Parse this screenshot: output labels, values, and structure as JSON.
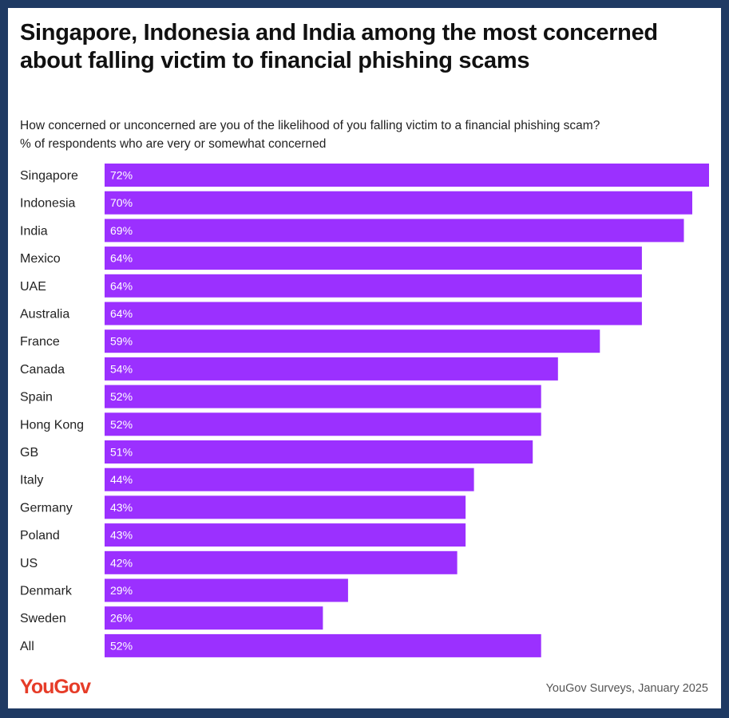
{
  "header": {
    "title": "Singapore, Indonesia and India among the most concerned about falling victim to financial phishing scams",
    "subtitle_line1": "How concerned or unconcerned are you of the likelihood of you falling victim to a financial phishing scam?",
    "subtitle_line2": "% of respondents who are very or somewhat concerned"
  },
  "footer": {
    "logo_text": "YouGov",
    "logo_color": "#e63c28",
    "source": "YouGov Surveys, January 2025"
  },
  "colors": {
    "bar": "#9b30ff",
    "border": "#1f3a63"
  },
  "chart_data": {
    "type": "bar",
    "orientation": "horizontal",
    "categories": [
      "Singapore",
      "Indonesia",
      "India",
      "Mexico",
      "UAE",
      "Australia",
      "France",
      "Canada",
      "Spain",
      "Hong Kong",
      "GB",
      "Italy",
      "Germany",
      "Poland",
      "US",
      "Denmark",
      "Sweden",
      "All"
    ],
    "values": [
      72,
      70,
      69,
      64,
      64,
      64,
      59,
      54,
      52,
      52,
      51,
      44,
      43,
      43,
      42,
      29,
      26,
      52
    ],
    "value_labels": [
      "72%",
      "70%",
      "69%",
      "64%",
      "64%",
      "64%",
      "59%",
      "54%",
      "52%",
      "52%",
      "51%",
      "44%",
      "43%",
      "43%",
      "42%",
      "29%",
      "26%",
      "52%"
    ],
    "unit": "%",
    "xlim": [
      0,
      72
    ],
    "grid": false,
    "legend": "none"
  }
}
